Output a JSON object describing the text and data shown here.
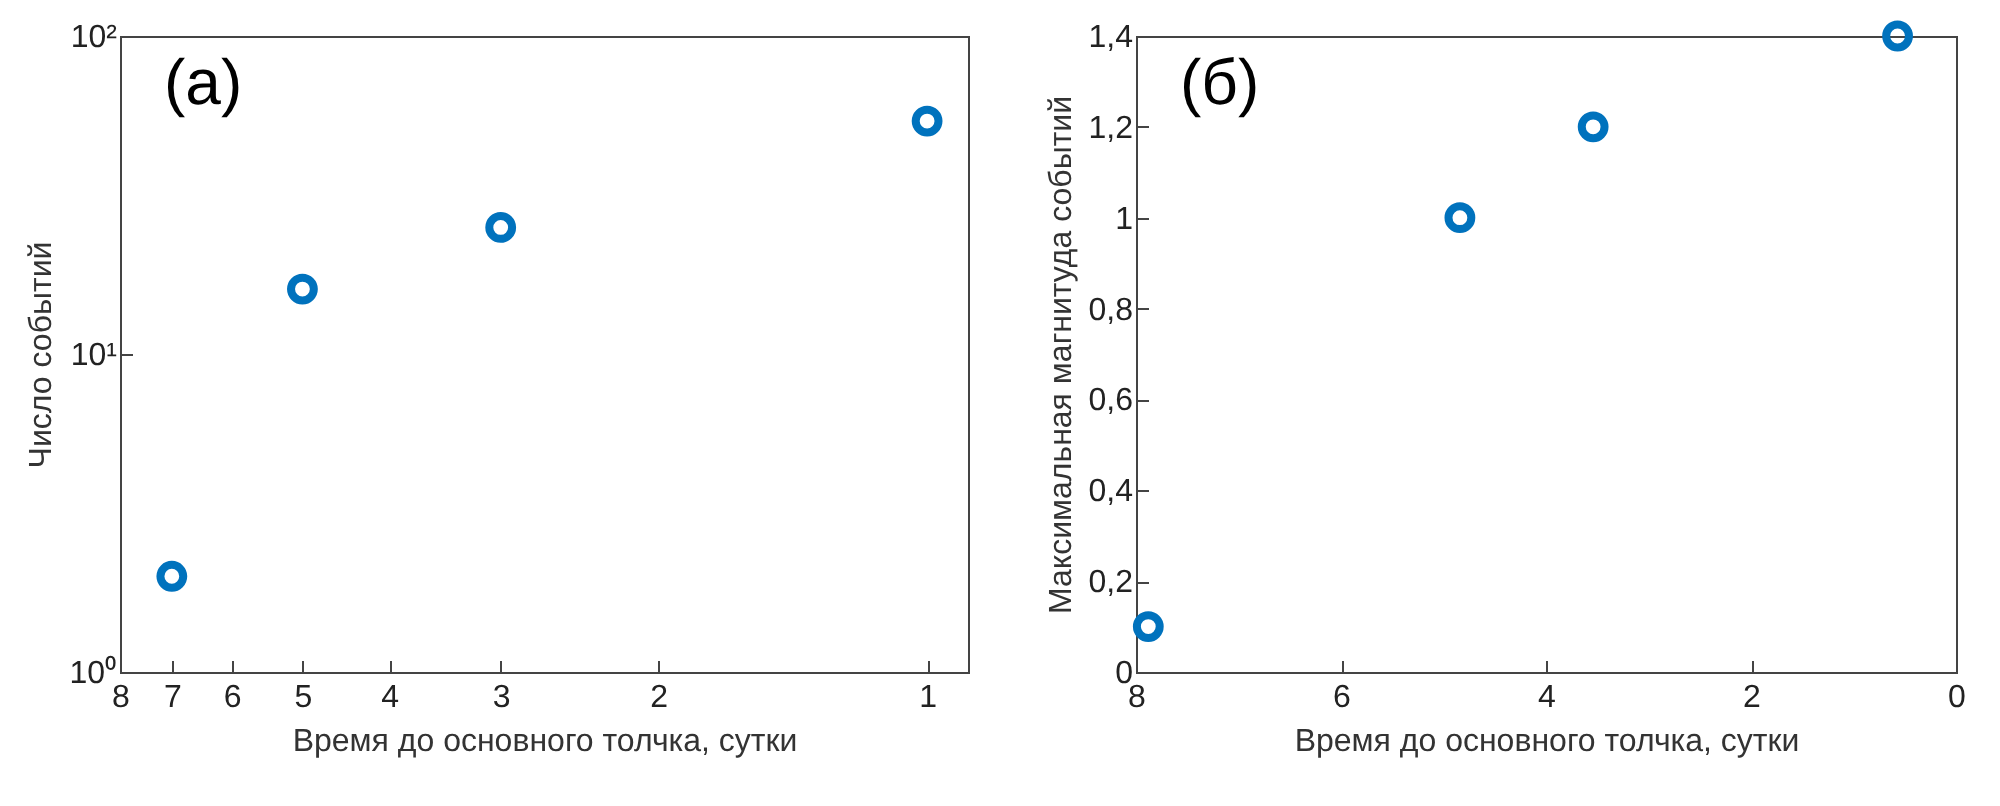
{
  "chart_data": [
    {
      "type": "scatter",
      "xlabel": "Время до основного толчка, сутки",
      "ylabel": "Число событий",
      "log": "xy",
      "grid": false,
      "marker": "circle",
      "annotations": [
        "(a)"
      ],
      "x": [
        7,
        5,
        3,
        1
      ],
      "series": [
        {
          "color": "#0072bd",
          "values": [
            2,
            16,
            25,
            54
          ]
        }
      ],
      "xlim": [
        8,
        0.9
      ],
      "xticks": [
        8,
        7,
        6,
        5,
        4,
        3,
        2,
        1
      ],
      "ylim": [
        1,
        100
      ],
      "yticks": [
        {
          "value": 1,
          "label": "10⁰"
        },
        {
          "value": 10,
          "label": "10¹"
        },
        {
          "value": 100,
          "label": "10²"
        }
      ]
    },
    {
      "type": "scatter",
      "xlabel": "Время до основного толчка, сутки",
      "ylabel": "Максимальная магнитуда событий",
      "grid": false,
      "marker": "circle",
      "annotations": [
        "(б)"
      ],
      "x": [
        7.88,
        4.84,
        3.54,
        0.57
      ],
      "series": [
        {
          "color": "#0072bd",
          "values": [
            0.1,
            1.0,
            1.2,
            1.4
          ]
        }
      ],
      "xlim": [
        8,
        0
      ],
      "xticks": [
        8,
        6,
        4,
        2,
        0
      ],
      "ylim": [
        0,
        1.4
      ],
      "yticks": [
        0,
        {
          "value": 0.2,
          "label": "0,2"
        },
        {
          "value": 0.4,
          "label": "0,4"
        },
        {
          "value": 0.6,
          "label": "0,6"
        },
        {
          "value": 0.8,
          "label": "0,8"
        },
        1,
        {
          "value": 1.2,
          "label": "1,2"
        },
        {
          "value": 1.4,
          "label": "1,4"
        }
      ]
    }
  ]
}
